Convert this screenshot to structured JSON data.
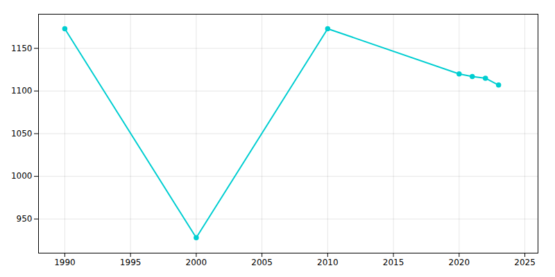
{
  "chart_data": {
    "type": "line",
    "x": [
      1990,
      2000,
      2010,
      2020,
      2021,
      2022,
      2023
    ],
    "values": [
      1173,
      928,
      1173,
      1120,
      1117,
      1115,
      1107
    ],
    "color": "#00CED1",
    "marker": "circle",
    "xlim": [
      1988,
      2026
    ],
    "ylim": [
      910,
      1190
    ],
    "xticks": [
      1990,
      1995,
      2000,
      2005,
      2010,
      2015,
      2020,
      2025
    ],
    "yticks": [
      950,
      1000,
      1050,
      1100,
      1150
    ],
    "grid": true
  }
}
